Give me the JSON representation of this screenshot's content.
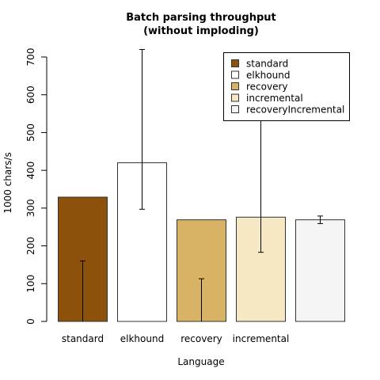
{
  "chart_data": {
    "type": "bar",
    "title": [
      "Batch parsing throughput",
      "(without imploding)"
    ],
    "xlabel": "Language",
    "ylabel": "1000 chars/s",
    "ylim": [
      0,
      700
    ],
    "yticks": [
      0,
      100,
      200,
      300,
      400,
      500,
      600,
      700
    ],
    "grid": false,
    "legend_position": "top-right",
    "categories": [
      "standard",
      "elkhound",
      "recovery",
      "incremental",
      ""
    ],
    "series": [
      {
        "name": "standard",
        "value": 329,
        "err_low": 0,
        "err_high": 160,
        "color": "#8C510A"
      },
      {
        "name": "elkhound",
        "value": 420,
        "err_low": 297,
        "err_high": 720,
        "color": "#FFFFFF"
      },
      {
        "name": "recovery",
        "value": 269,
        "err_low": 0,
        "err_high": 113,
        "color": "#D8B365"
      },
      {
        "name": "incremental",
        "value": 276,
        "err_low": 183,
        "err_high": 567,
        "color": "#F6E8C3"
      },
      {
        "name": "recoveryIncremental",
        "value": 269,
        "err_low": 259,
        "err_high": 279,
        "color": "#F5F5F5"
      }
    ]
  }
}
